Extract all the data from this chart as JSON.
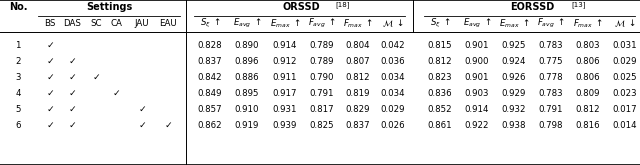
{
  "col_headers_settings": [
    "BS",
    "DAS",
    "SC",
    "CA",
    "JAU",
    "EAU"
  ],
  "rows": [
    {
      "no": "1",
      "settings": [
        1,
        0,
        0,
        0,
        0,
        0
      ],
      "orssd": [
        0.828,
        0.89,
        0.914,
        0.789,
        0.804,
        0.042
      ],
      "eorssd": [
        0.815,
        0.901,
        0.925,
        0.783,
        0.803,
        0.031
      ]
    },
    {
      "no": "2",
      "settings": [
        1,
        1,
        0,
        0,
        0,
        0
      ],
      "orssd": [
        0.837,
        0.896,
        0.912,
        0.789,
        0.807,
        0.036
      ],
      "eorssd": [
        0.812,
        0.9,
        0.924,
        0.775,
        0.806,
        0.029
      ]
    },
    {
      "no": "3",
      "settings": [
        1,
        1,
        1,
        0,
        0,
        0
      ],
      "orssd": [
        0.842,
        0.886,
        0.911,
        0.79,
        0.812,
        0.034
      ],
      "eorssd": [
        0.823,
        0.901,
        0.926,
        0.778,
        0.806,
        0.025
      ]
    },
    {
      "no": "4",
      "settings": [
        1,
        1,
        0,
        1,
        0,
        0
      ],
      "orssd": [
        0.849,
        0.895,
        0.917,
        0.791,
        0.819,
        0.034
      ],
      "eorssd": [
        0.836,
        0.903,
        0.929,
        0.783,
        0.809,
        0.023
      ]
    },
    {
      "no": "5",
      "settings": [
        1,
        1,
        0,
        0,
        1,
        0
      ],
      "orssd": [
        0.857,
        0.91,
        0.931,
        0.817,
        0.829,
        0.029
      ],
      "eorssd": [
        0.852,
        0.914,
        0.932,
        0.791,
        0.812,
        0.017
      ]
    },
    {
      "no": "6",
      "settings": [
        1,
        1,
        0,
        0,
        1,
        1
      ],
      "orssd": [
        0.862,
        0.919,
        0.939,
        0.825,
        0.837,
        0.026
      ],
      "eorssd": [
        0.861,
        0.922,
        0.938,
        0.798,
        0.816,
        0.014
      ]
    }
  ],
  "orssd_ref": "18",
  "eorssd_ref": "13",
  "background": "#ffffff"
}
